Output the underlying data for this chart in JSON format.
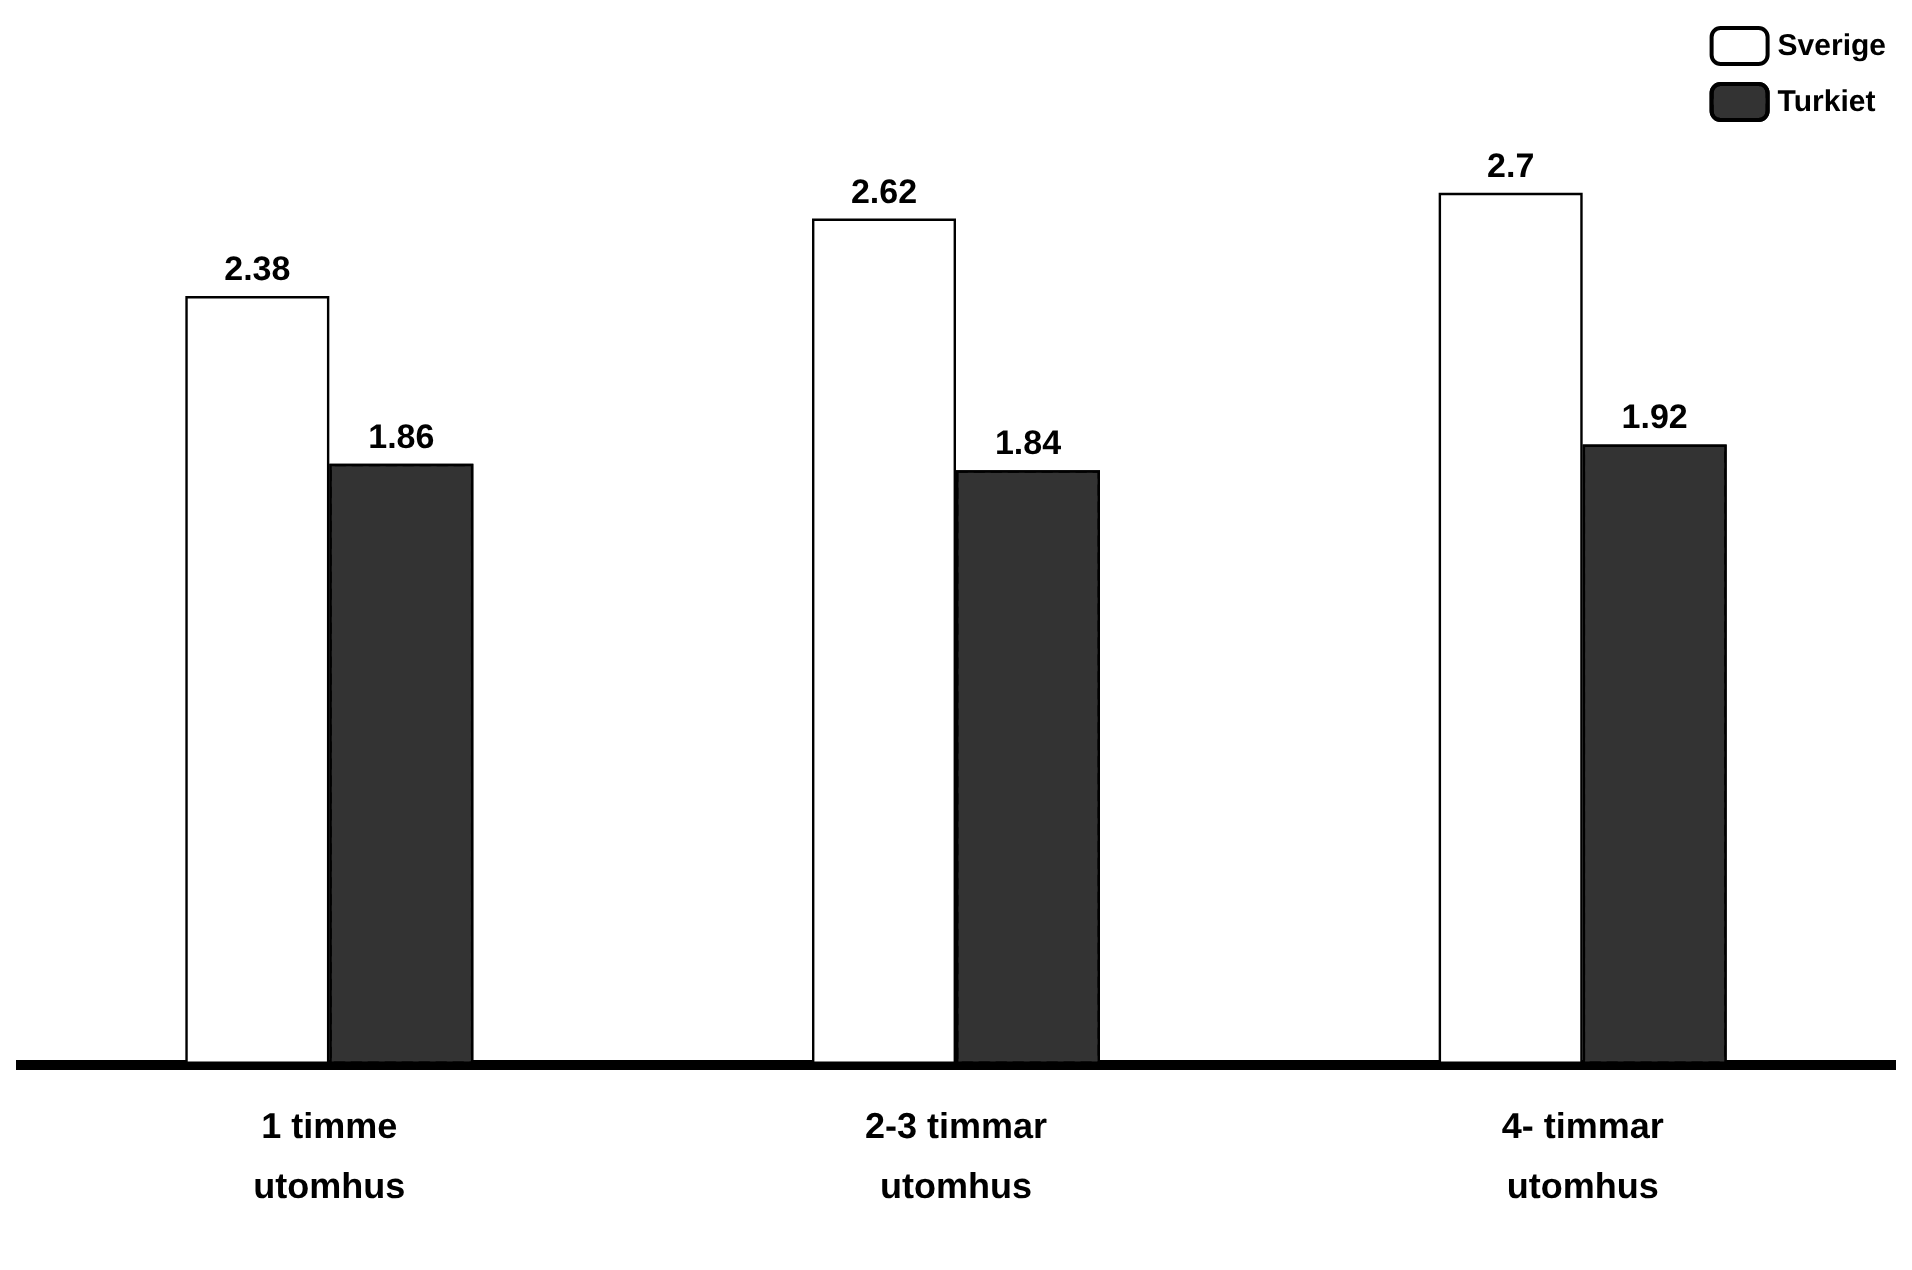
{
  "chart_data": {
    "type": "bar",
    "categories": [
      "1 timme\nutomhus",
      "2-3 timmar\nutomhus",
      "4- timmar\nutomhus"
    ],
    "series": [
      {
        "name": "Sverige",
        "color": "#ffffff",
        "values": [
          2.38,
          2.62,
          2.7
        ]
      },
      {
        "name": "Turkiet",
        "color": "#333333",
        "values": [
          1.86,
          1.84,
          1.92
        ]
      }
    ],
    "data_labels": true,
    "legend": "top right"
  }
}
